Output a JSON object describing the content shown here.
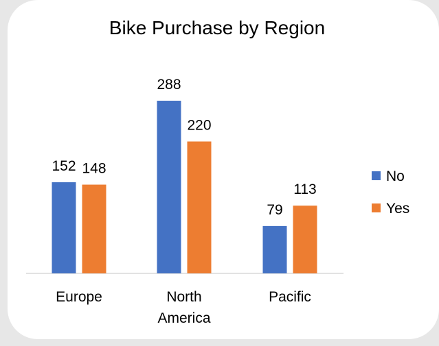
{
  "chart_data": {
    "type": "bar",
    "title": "Bike Purchase by Region",
    "categories": [
      "Europe",
      "North America",
      "Pacific"
    ],
    "category_lines": [
      [
        "Europe"
      ],
      [
        "North",
        "America"
      ],
      [
        "Pacific"
      ]
    ],
    "series": [
      {
        "name": "No",
        "values": [
          152,
          288,
          79
        ],
        "color": "#4472C4"
      },
      {
        "name": "Yes",
        "values": [
          148,
          220,
          113
        ],
        "color": "#ED7D31"
      }
    ],
    "xlabel": "",
    "ylabel": "",
    "ylim": [
      0,
      300
    ],
    "grid": false,
    "legend": "right",
    "data_labels": true
  }
}
